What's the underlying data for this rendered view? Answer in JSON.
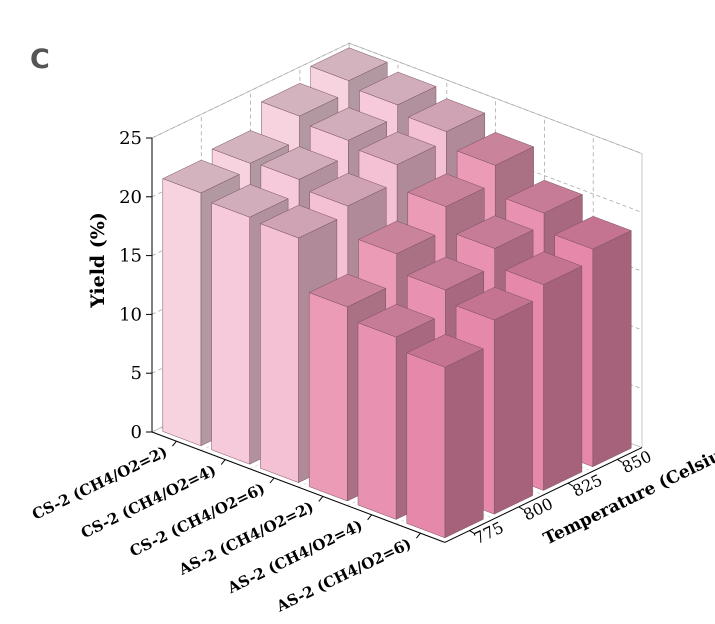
{
  "panel_label": "C",
  "chart_data": {
    "type": "bar3d",
    "zlabel": "Yield (%)",
    "ylabel": "Temperature (Celsius)",
    "zlim": [
      0,
      25
    ],
    "z_ticks": [
      "0",
      "5",
      "10",
      "15",
      "20",
      "25"
    ],
    "temperatures": [
      "775",
      "800",
      "825",
      "850"
    ],
    "samples": [
      "CS-2 (CH4/O2=2)",
      "CS-2 (CH4/O2=4)",
      "CS-2 (CH4/O2=6)",
      "AS-2 (CH4/O2=2)",
      "AS-2 (CH4/O2=4)",
      "AS-2 (CH4/O2=6)"
    ],
    "series": [
      {
        "name": "CS-2 (CH4/O2=2)",
        "color": "#f7d3e0",
        "values": [
          21.5,
          22.0,
          24.0,
          25.0
        ]
      },
      {
        "name": "CS-2 (CH4/O2=4)",
        "color": "#f6cadb",
        "values": [
          21.0,
          22.2,
          23.5,
          24.5
        ]
      },
      {
        "name": "CS-2 (CH4/O2=6)",
        "color": "#f4c0d4",
        "values": [
          20.8,
          21.5,
          23.0,
          23.8
        ]
      },
      {
        "name": "AS-2 (CH4/O2=2)",
        "color": "#ec9bb7",
        "values": [
          16.5,
          19.0,
          21.0,
          22.5
        ]
      },
      {
        "name": "AS-2 (CH4/O2=4)",
        "color": "#e991b0",
        "values": [
          15.5,
          17.5,
          19.0,
          20.0
        ]
      },
      {
        "name": "AS-2 (CH4/O2=6)",
        "color": "#e688a9",
        "values": [
          14.5,
          16.5,
          17.5,
          18.5
        ]
      }
    ]
  }
}
